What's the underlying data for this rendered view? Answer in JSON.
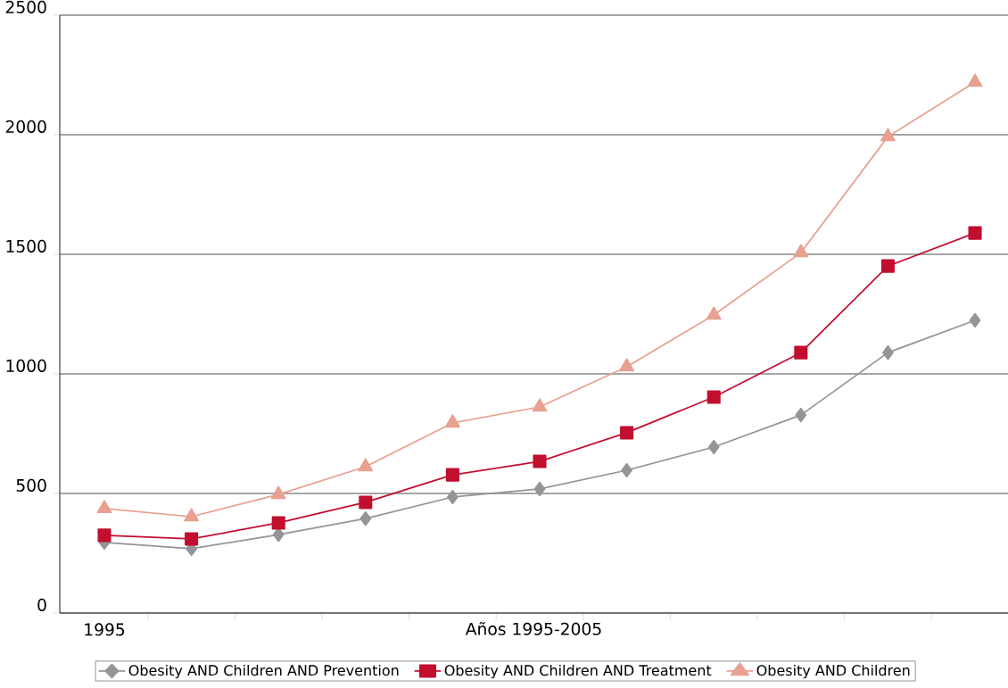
{
  "chart_data": {
    "type": "line",
    "xlabel": "Años 1995-2005",
    "categories": [
      "1995",
      null,
      null,
      null,
      null,
      null,
      null,
      null,
      null,
      null,
      null
    ],
    "series": [
      {
        "name": "Obesity AND Children AND Prevention",
        "color": "#939598",
        "marker": "diamond",
        "values": [
          295,
          269,
          328,
          395,
          485,
          519,
          597,
          694,
          828,
          1089,
          1224
        ]
      },
      {
        "name": "Obesity AND Children AND Treatment",
        "color": "#c20e2f",
        "marker": "square",
        "values": [
          325,
          310,
          377,
          463,
          578,
          634,
          754,
          903,
          1089,
          1451,
          1589
        ]
      },
      {
        "name": "Obesity AND Children",
        "color": "#e8a090",
        "marker": "triangle",
        "values": [
          437,
          403,
          496,
          612,
          795,
          862,
          1030,
          1246,
          1507,
          1992,
          2220
        ]
      }
    ],
    "ylim": [
      0,
      2500
    ],
    "yticks": [
      0,
      500,
      1000,
      1500,
      2000,
      2500
    ],
    "grid": "y",
    "legend": "bottom"
  }
}
